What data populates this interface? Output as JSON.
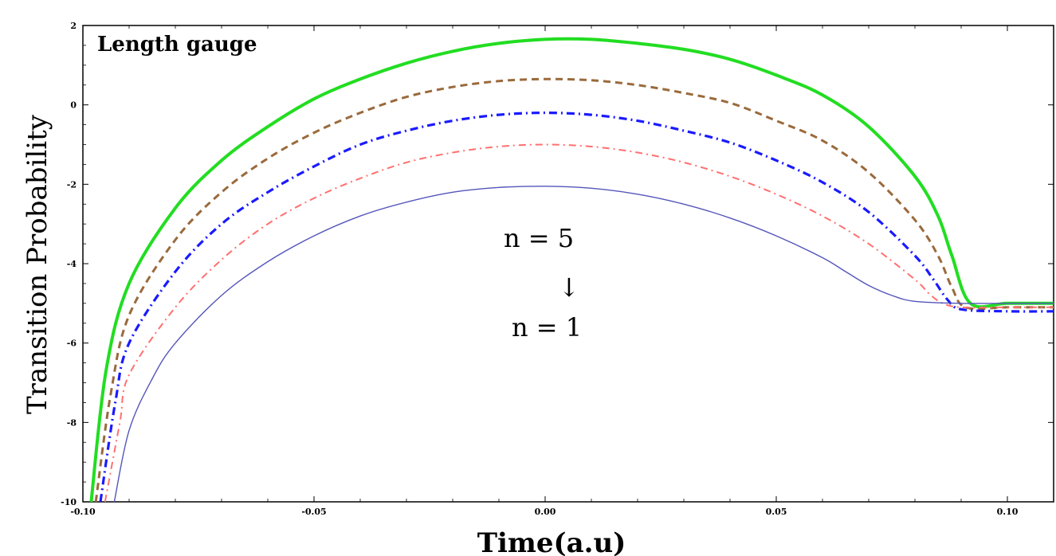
{
  "chart_data": {
    "type": "line",
    "xlabel": "Time(a.u)",
    "ylabel": "Transition Probability",
    "annotation_title": "Length gauge",
    "annotation_top": "n = 5",
    "annotation_arrow": "↓",
    "annotation_bottom": "n = 1",
    "xlim": [
      -0.1,
      0.11
    ],
    "ylim": [
      -10,
      2
    ],
    "x_ticks": [
      -0.1,
      -0.05,
      0.0,
      0.05,
      0.1
    ],
    "x_tick_labels": [
      "-0.10",
      "-0.05",
      "0.00",
      "0.05",
      "0.10"
    ],
    "y_ticks": [
      2,
      0,
      -2,
      -4,
      -6,
      -8,
      -10
    ],
    "y_tick_labels": [
      "2",
      "0",
      "-2",
      "-4",
      "-6",
      "-8",
      "-10"
    ],
    "grid": false,
    "series": [
      {
        "style": "solid-thick",
        "color": "#22dd22",
        "x": [
          -0.0982,
          -0.095,
          -0.09,
          -0.08,
          -0.07,
          -0.06,
          -0.05,
          -0.04,
          -0.03,
          -0.02,
          -0.01,
          0.0,
          0.01,
          0.02,
          0.03,
          0.04,
          0.05,
          0.06,
          0.07,
          0.08,
          0.085,
          0.088,
          0.092,
          0.1,
          0.11
        ],
        "y": [
          -10.0,
          -6.7,
          -4.5,
          -2.6,
          -1.4,
          -0.55,
          0.15,
          0.65,
          1.05,
          1.35,
          1.55,
          1.65,
          1.65,
          1.55,
          1.4,
          1.15,
          0.75,
          0.25,
          -0.55,
          -1.8,
          -2.8,
          -3.8,
          -5.0,
          -5.0,
          -5.0
        ]
      },
      {
        "style": "dashed",
        "color": "#9a6a3c",
        "x": [
          -0.0972,
          -0.094,
          -0.09,
          -0.08,
          -0.07,
          -0.06,
          -0.05,
          -0.04,
          -0.03,
          -0.02,
          -0.01,
          0.0,
          0.01,
          0.02,
          0.03,
          0.04,
          0.05,
          0.06,
          0.07,
          0.08,
          0.085,
          0.088,
          0.091,
          0.1,
          0.11
        ],
        "y": [
          -10.0,
          -7.3,
          -5.3,
          -3.4,
          -2.2,
          -1.35,
          -0.7,
          -0.2,
          0.2,
          0.45,
          0.6,
          0.65,
          0.62,
          0.5,
          0.3,
          0.05,
          -0.4,
          -0.9,
          -1.7,
          -2.9,
          -3.8,
          -4.6,
          -5.1,
          -5.1,
          -5.1
        ]
      },
      {
        "style": "dash-dot",
        "color": "#1a1aff",
        "x": [
          -0.0962,
          -0.093,
          -0.09,
          -0.08,
          -0.07,
          -0.06,
          -0.05,
          -0.04,
          -0.03,
          -0.02,
          -0.01,
          0.0,
          0.01,
          0.02,
          0.03,
          0.04,
          0.05,
          0.06,
          0.07,
          0.08,
          0.084,
          0.087,
          0.09,
          0.1,
          0.11
        ],
        "y": [
          -10.0,
          -7.5,
          -6.0,
          -4.2,
          -3.0,
          -2.2,
          -1.55,
          -1.0,
          -0.65,
          -0.4,
          -0.25,
          -0.2,
          -0.25,
          -0.4,
          -0.65,
          -0.95,
          -1.4,
          -1.95,
          -2.7,
          -3.8,
          -4.4,
          -4.9,
          -5.15,
          -5.2,
          -5.2
        ]
      },
      {
        "style": "dash-dot-thin",
        "color": "#ff7070",
        "x": [
          -0.0952,
          -0.092,
          -0.09,
          -0.08,
          -0.07,
          -0.06,
          -0.05,
          -0.04,
          -0.03,
          -0.02,
          -0.01,
          0.0,
          0.01,
          0.02,
          0.03,
          0.04,
          0.05,
          0.06,
          0.07,
          0.08,
          0.083,
          0.086,
          0.09,
          0.1,
          0.11
        ],
        "y": [
          -10.0,
          -8.0,
          -6.8,
          -5.1,
          -3.9,
          -3.0,
          -2.35,
          -1.85,
          -1.45,
          -1.2,
          -1.05,
          -1.0,
          -1.05,
          -1.2,
          -1.45,
          -1.8,
          -2.25,
          -2.8,
          -3.5,
          -4.4,
          -4.75,
          -5.0,
          -5.1,
          -5.1,
          -5.1
        ]
      },
      {
        "style": "solid-thin",
        "color": "#5555bb",
        "x": [
          -0.0932,
          -0.09,
          -0.085,
          -0.08,
          -0.07,
          -0.06,
          -0.05,
          -0.04,
          -0.03,
          -0.02,
          -0.01,
          0.0,
          0.01,
          0.02,
          0.03,
          0.04,
          0.05,
          0.06,
          0.065,
          0.07,
          0.075,
          0.08,
          0.09,
          0.1,
          0.11
        ],
        "y": [
          -10.0,
          -8.2,
          -6.9,
          -6.0,
          -4.8,
          -3.95,
          -3.3,
          -2.8,
          -2.45,
          -2.2,
          -2.08,
          -2.05,
          -2.1,
          -2.25,
          -2.5,
          -2.85,
          -3.3,
          -3.85,
          -4.2,
          -4.55,
          -4.8,
          -4.95,
          -5.0,
          -5.0,
          -5.0
        ]
      }
    ]
  }
}
